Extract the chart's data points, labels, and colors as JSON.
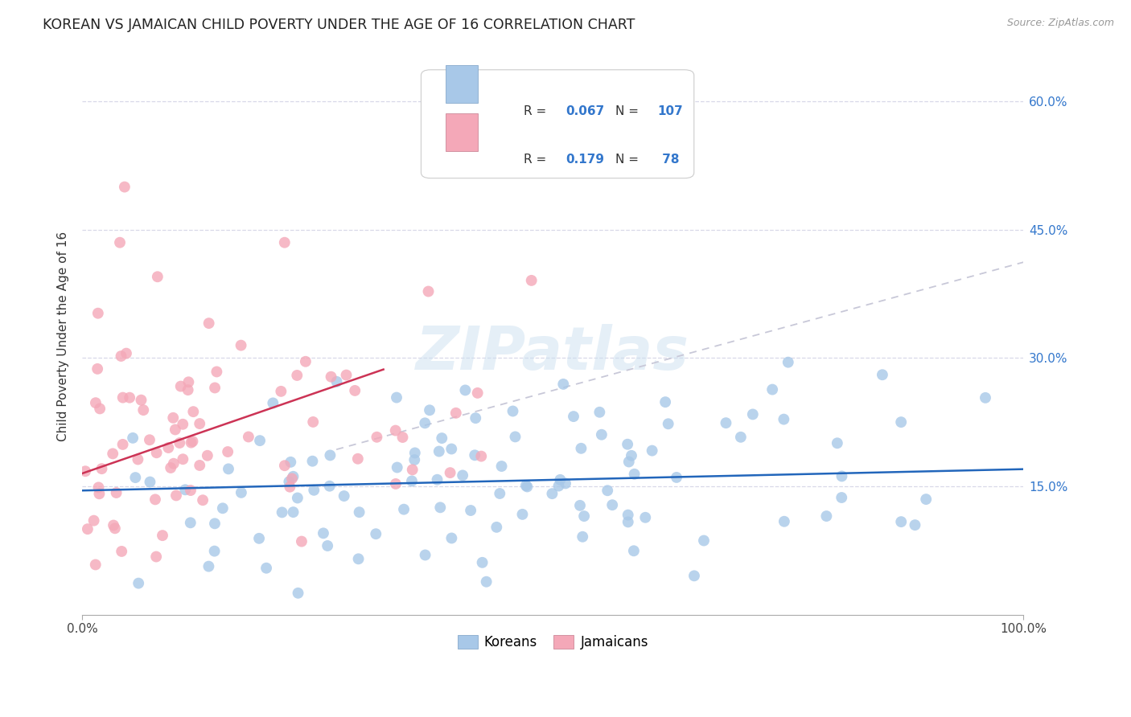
{
  "title": "KOREAN VS JAMAICAN CHILD POVERTY UNDER THE AGE OF 16 CORRELATION CHART",
  "source": "Source: ZipAtlas.com",
  "ylabel": "Child Poverty Under the Age of 16",
  "watermark": "ZIPatlas",
  "korean_R": 0.067,
  "korean_N": 107,
  "jamaican_R": 0.179,
  "jamaican_N": 78,
  "korean_color": "#a8c8e8",
  "jamaican_color": "#f4a8b8",
  "korean_line_color": "#2266bb",
  "jamaican_line_color": "#cc3355",
  "trendline_dashed_color": "#c8c8d8",
  "xlim": [
    0,
    1
  ],
  "ylim": [
    0,
    0.65
  ],
  "ytick_vals": [
    0.15,
    0.3,
    0.45,
    0.6
  ],
  "ytick_labels": [
    "15.0%",
    "30.0%",
    "45.0%",
    "60.0%"
  ],
  "background_color": "#ffffff",
  "grid_color": "#d8d8e8",
  "title_fontsize": 12.5,
  "axis_label_fontsize": 11,
  "tick_fontsize": 11,
  "korean_seed": 42,
  "jamaican_seed": 123
}
